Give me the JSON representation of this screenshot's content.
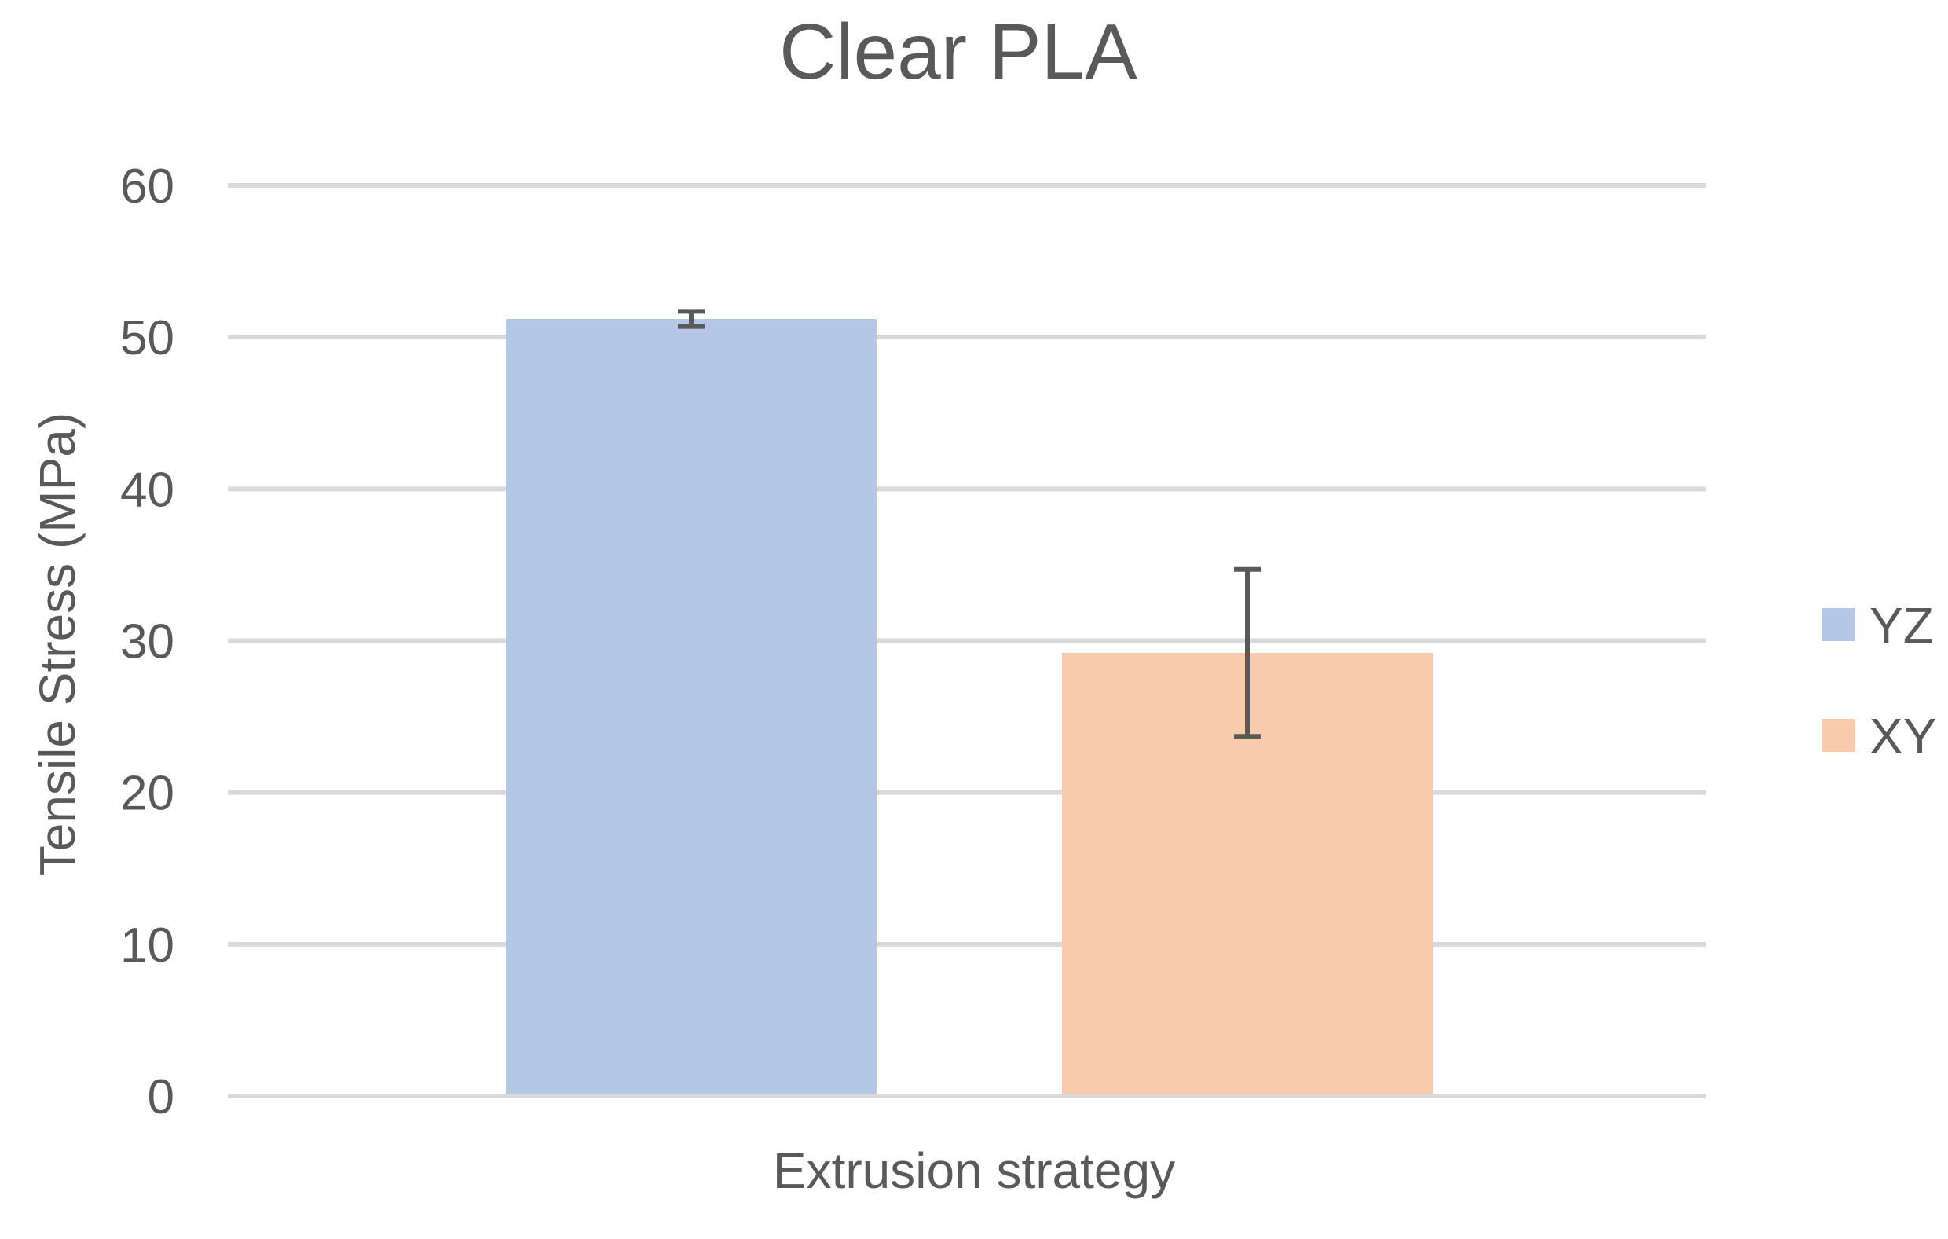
{
  "chart_data": {
    "type": "bar",
    "title": "Clear PLA",
    "xlabel": "Extrusion strategy",
    "ylabel": "Tensile Stress (MPa)",
    "ylim": [
      0,
      60
    ],
    "yticks": [
      0,
      10,
      20,
      30,
      40,
      50,
      60
    ],
    "grid": true,
    "legend_position": "right",
    "categories": [
      "Extrusion strategy"
    ],
    "series": [
      {
        "name": "YZ",
        "values": [
          51.2
        ],
        "error": [
          0.5
        ],
        "color": "#b4c7e7"
      },
      {
        "name": "XY",
        "values": [
          29.2
        ],
        "error": [
          5.5
        ],
        "color": "#f8cbad"
      }
    ]
  }
}
